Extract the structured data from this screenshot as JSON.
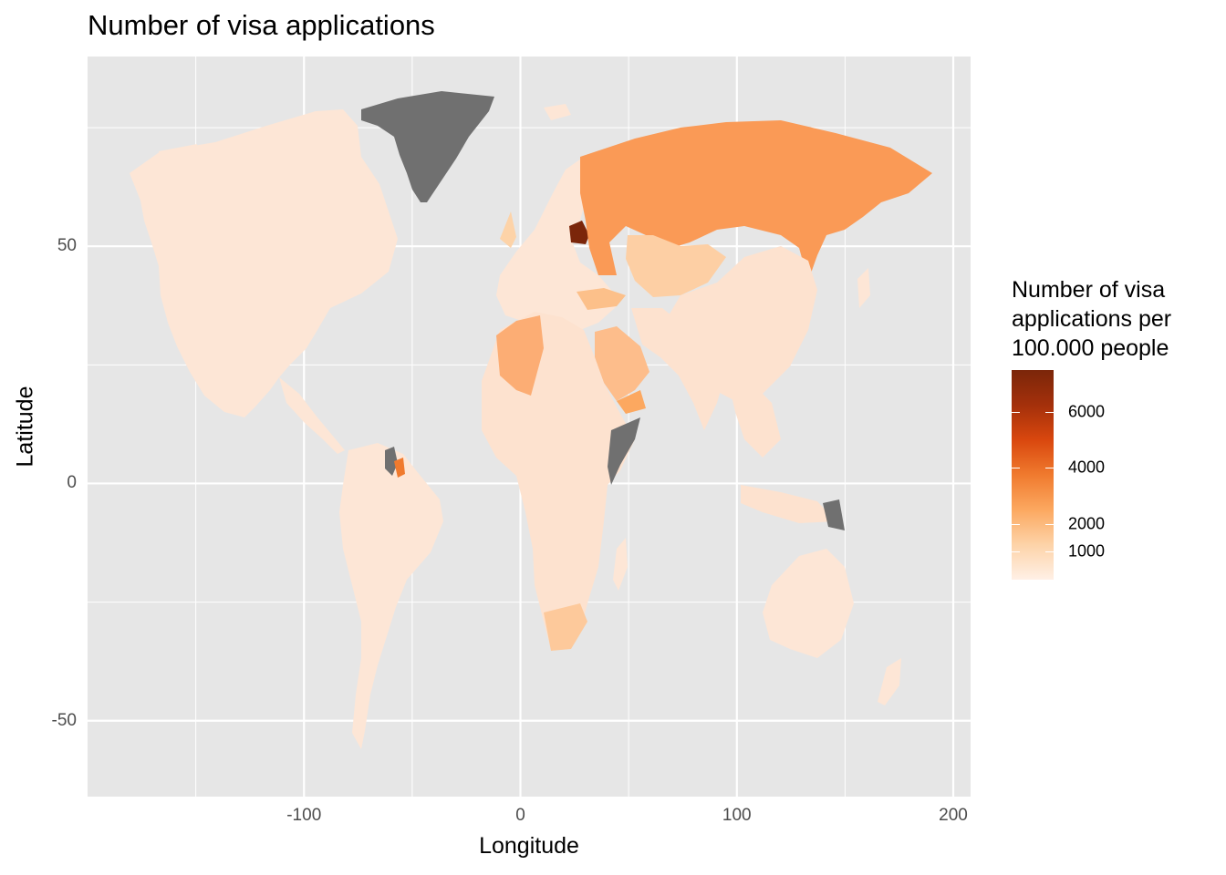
{
  "title": "Number of visa applications",
  "xlabel": "Longitude",
  "ylabel": "Latitude",
  "x_axis": {
    "min": -200,
    "max": 208,
    "major_ticks": [
      -100,
      0,
      100,
      200
    ],
    "minor_ticks": [
      -150,
      -50,
      50,
      150
    ]
  },
  "y_axis": {
    "min": -66,
    "max": 90,
    "major_ticks": [
      -50,
      0,
      50
    ],
    "minor_ticks": [
      -25,
      25,
      75
    ]
  },
  "x_tick_labels": [
    "-100",
    "0",
    "100",
    "200"
  ],
  "y_tick_labels": [
    "-50",
    "0",
    "50"
  ],
  "legend": {
    "title_lines": [
      "Number of visa",
      "applications per",
      "100.000 people"
    ],
    "min": 0,
    "max": 7500,
    "ticks": [
      1000,
      2000,
      4000,
      6000
    ],
    "tick_labels": [
      "1000",
      "2000",
      "4000",
      "6000"
    ],
    "colors": [
      "#fff0e6",
      "#fdd3a8",
      "#fca860",
      "#f07a2e",
      "#d9470e",
      "#a4300b",
      "#7b260a"
    ],
    "no_data_color": "#707070"
  },
  "colors": {
    "panel": "#e6e6e6",
    "grid": "#ffffff"
  },
  "chart_data": {
    "type": "choropleth",
    "value_units": "visa applications per 100,000 people",
    "regions": [
      {
        "name": "Greenland",
        "value": null
      },
      {
        "name": "Russia",
        "value": 2700
      },
      {
        "name": "Belarus",
        "value": 7500
      },
      {
        "name": "Kazakhstan",
        "value": 1200
      },
      {
        "name": "Ukraine",
        "value": 700
      },
      {
        "name": "Turkey",
        "value": 1500
      },
      {
        "name": "Algeria",
        "value": 1900
      },
      {
        "name": "Saudi Arabia",
        "value": 1300
      },
      {
        "name": "Yemen",
        "value": 2000
      },
      {
        "name": "Suriname",
        "value": 3500
      },
      {
        "name": "Guyana",
        "value": null
      },
      {
        "name": "Somalia",
        "value": null
      },
      {
        "name": "Eritrea",
        "value": null
      },
      {
        "name": "Western Sahara",
        "value": null
      },
      {
        "name": "Papua New Guinea",
        "value": null
      },
      {
        "name": "South Africa",
        "value": 1200
      },
      {
        "name": "United States",
        "value": 350
      },
      {
        "name": "Canada",
        "value": 300
      },
      {
        "name": "Brazil",
        "value": 350
      },
      {
        "name": "Australia",
        "value": 300
      },
      {
        "name": "China",
        "value": 300
      },
      {
        "name": "India",
        "value": 200
      }
    ]
  }
}
